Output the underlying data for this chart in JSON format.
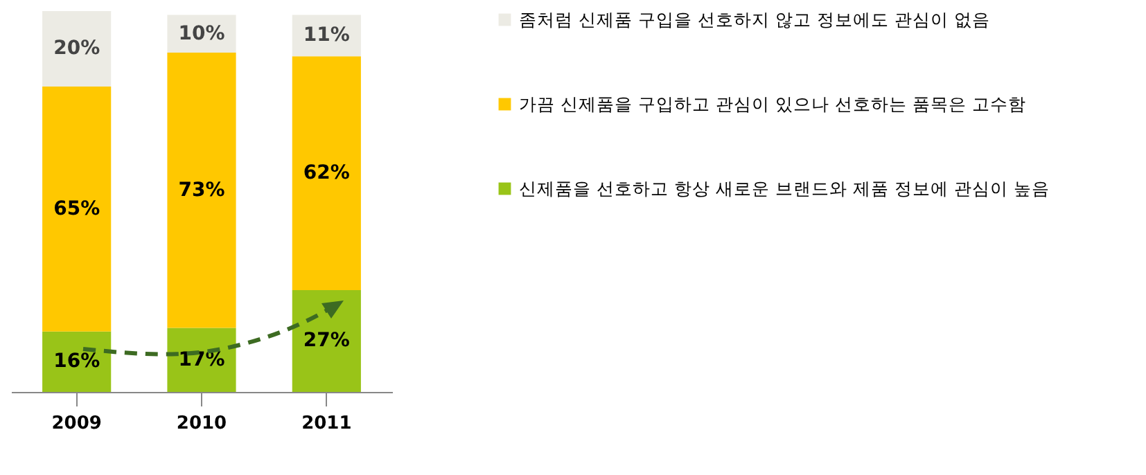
{
  "chart_data": {
    "type": "bar",
    "stacked": true,
    "categories": [
      "2009",
      "2010",
      "2011"
    ],
    "series": [
      {
        "name": "신제품을 선호하고 항상 새로운 브랜드와 제품 정보에 관심이 높음",
        "color": "#99c418",
        "values": [
          16,
          17,
          27
        ],
        "value_labels": [
          "16%",
          "17%",
          "27%"
        ]
      },
      {
        "name": "가끔 신제품을 구입하고 관심이 있으나 선호하는 품목은 고수함",
        "color": "#ffc800",
        "values": [
          65,
          73,
          62
        ],
        "value_labels": [
          "65%",
          "73%",
          "62%"
        ]
      },
      {
        "name": "좀처럼 신제품 구입을 선호하지 않고 정보에도 관심이 없음",
        "color": "#ecebe4",
        "values": [
          20,
          10,
          11
        ],
        "value_labels": [
          "20%",
          "10%",
          "11%"
        ]
      }
    ],
    "legend": "right"
  }
}
